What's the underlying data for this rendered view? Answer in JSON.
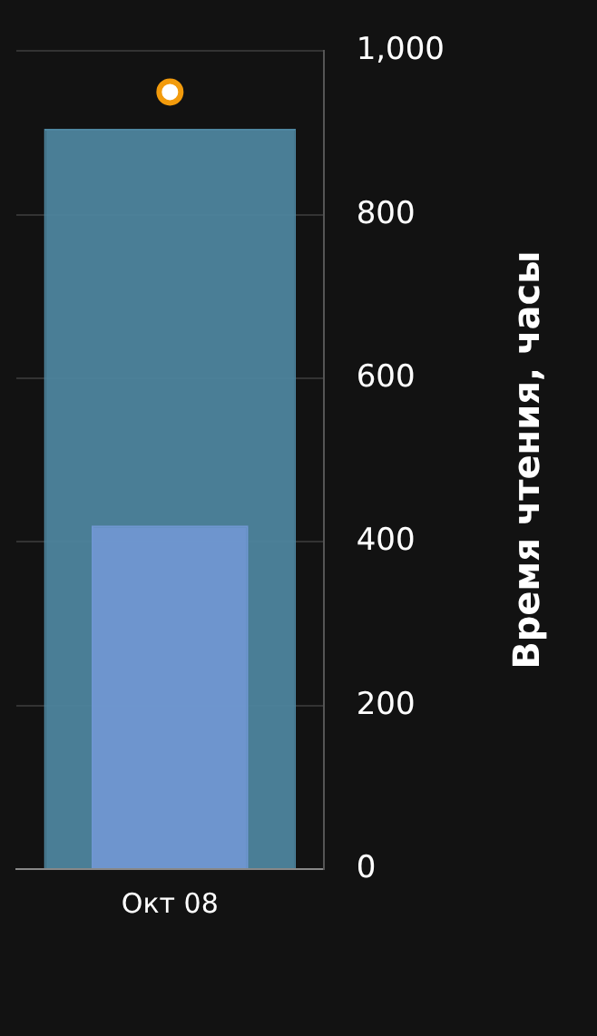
{
  "chart_data": {
    "type": "bar",
    "y2label": "Время чтения, часы",
    "categories": [
      "Окт 08"
    ],
    "series": [
      {
        "color": "#4e86a0",
        "values": [
          905
        ],
        "axis": "y2"
      },
      {
        "color": "#7097d2",
        "values": [
          420
        ],
        "axis": "y2"
      },
      {
        "type": "line",
        "color": "#f29b0c",
        "values": [
          950
        ],
        "axis": "y2",
        "marker": "circle"
      }
    ],
    "y2lim": [
      0,
      1000
    ],
    "y2ticks": [
      0,
      200,
      400,
      600,
      800,
      {
        "value": 1000,
        "label": "1,000"
      }
    ],
    "grid": "y",
    "legend": false
  }
}
